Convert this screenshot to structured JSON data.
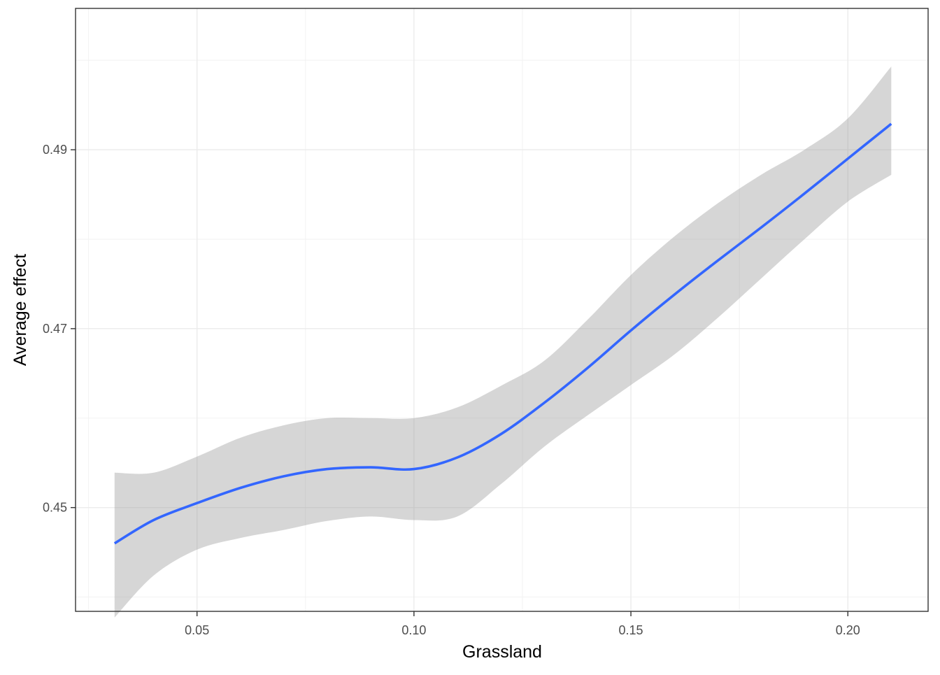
{
  "chart_data": {
    "type": "line",
    "title": "",
    "xlabel": "Grassland",
    "ylabel": "Average effect",
    "xlim": [
      0.022,
      0.2185
    ],
    "ylim": [
      0.4384,
      0.5058
    ],
    "x_ticks": [
      0.05,
      0.1,
      0.15,
      0.2
    ],
    "x_tick_labels": [
      "0.05",
      "0.10",
      "0.15",
      "0.20"
    ],
    "y_ticks": [
      0.45,
      0.47,
      0.49
    ],
    "y_tick_labels": [
      "0.45",
      "0.47",
      "0.49"
    ],
    "grid": true,
    "legend": "none",
    "series": [
      {
        "role": "smoothed fit with confidence band",
        "color": "#3366FF",
        "band_color": "#999999",
        "x": [
          0.031,
          0.04,
          0.05,
          0.06,
          0.07,
          0.08,
          0.09,
          0.1,
          0.11,
          0.12,
          0.13,
          0.14,
          0.15,
          0.16,
          0.17,
          0.18,
          0.19,
          0.2,
          0.21
        ],
        "y": [
          0.446,
          0.4486,
          0.4505,
          0.4522,
          0.4535,
          0.4543,
          0.4545,
          0.4543,
          0.4556,
          0.4582,
          0.4617,
          0.4656,
          0.4698,
          0.4738,
          0.4776,
          0.4813,
          0.4851,
          0.489,
          0.4929
        ],
        "lower": [
          0.4377,
          0.4424,
          0.4453,
          0.4466,
          0.4475,
          0.4485,
          0.449,
          0.4486,
          0.449,
          0.4526,
          0.4568,
          0.4603,
          0.4637,
          0.4671,
          0.4712,
          0.4756,
          0.48,
          0.4842,
          0.4872
        ],
        "upper": [
          0.4539,
          0.4539,
          0.4557,
          0.4578,
          0.4592,
          0.46,
          0.46,
          0.46,
          0.4612,
          0.4636,
          0.4664,
          0.471,
          0.476,
          0.4803,
          0.484,
          0.4872,
          0.49,
          0.4935,
          0.4993
        ]
      }
    ]
  }
}
